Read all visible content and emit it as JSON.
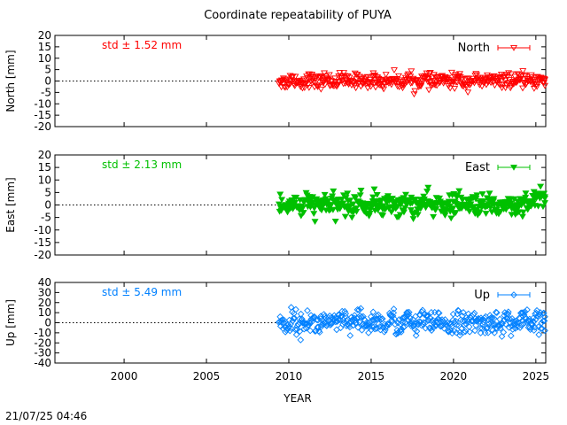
{
  "title": "Coordinate repeatability of PUYA",
  "timestamp": "21/07/25 04:46",
  "chart_data": {
    "type": "scatter",
    "xlabel": "YEAR",
    "xlim": [
      1995.8,
      2025.6
    ],
    "xticks": [
      "2000",
      "2005",
      "2010",
      "2015",
      "2020",
      "2025"
    ],
    "x_tick_values": [
      2000,
      2005,
      2010,
      2015,
      2020,
      2025
    ],
    "data_start_year": 2009.4,
    "data_end_year": 2025.6,
    "grid": false,
    "legend_position": "top-right",
    "panels": [
      {
        "name": "north",
        "series_name": "North",
        "ylabel": "North [mm]",
        "ylim": [
          -20,
          20
        ],
        "yticks": [
          "20",
          "15",
          "10",
          "5",
          "0",
          "-5",
          "-10",
          "-15",
          "-20"
        ],
        "y_tick_values": [
          20,
          15,
          10,
          5,
          0,
          -5,
          -10,
          -15,
          -20
        ],
        "std_label": "std ± 1.52 mm",
        "std_mm": 1.52,
        "color": "#ff0000",
        "marker": "triangle-down-open"
      },
      {
        "name": "east",
        "series_name": "East",
        "ylabel": "East [mm]",
        "ylim": [
          -20,
          20
        ],
        "yticks": [
          "20",
          "15",
          "10",
          "5",
          "0",
          "-5",
          "-10",
          "-15",
          "-20"
        ],
        "y_tick_values": [
          20,
          15,
          10,
          5,
          0,
          -5,
          -10,
          -15,
          -20
        ],
        "std_label": "std ± 2.13 mm",
        "std_mm": 2.13,
        "color": "#00c000",
        "marker": "triangle-down-filled"
      },
      {
        "name": "up",
        "series_name": "Up",
        "ylabel": "Up [mm]",
        "ylim": [
          -40,
          40
        ],
        "yticks": [
          "40",
          "30",
          "20",
          "10",
          "0",
          "-10",
          "-20",
          "-30",
          "-40"
        ],
        "y_tick_values": [
          40,
          30,
          20,
          10,
          0,
          -10,
          -20,
          -30,
          -40
        ],
        "std_label": "std ± 5.49 mm",
        "std_mm": 5.49,
        "color": "#0080ff",
        "marker": "diamond-open"
      }
    ]
  }
}
